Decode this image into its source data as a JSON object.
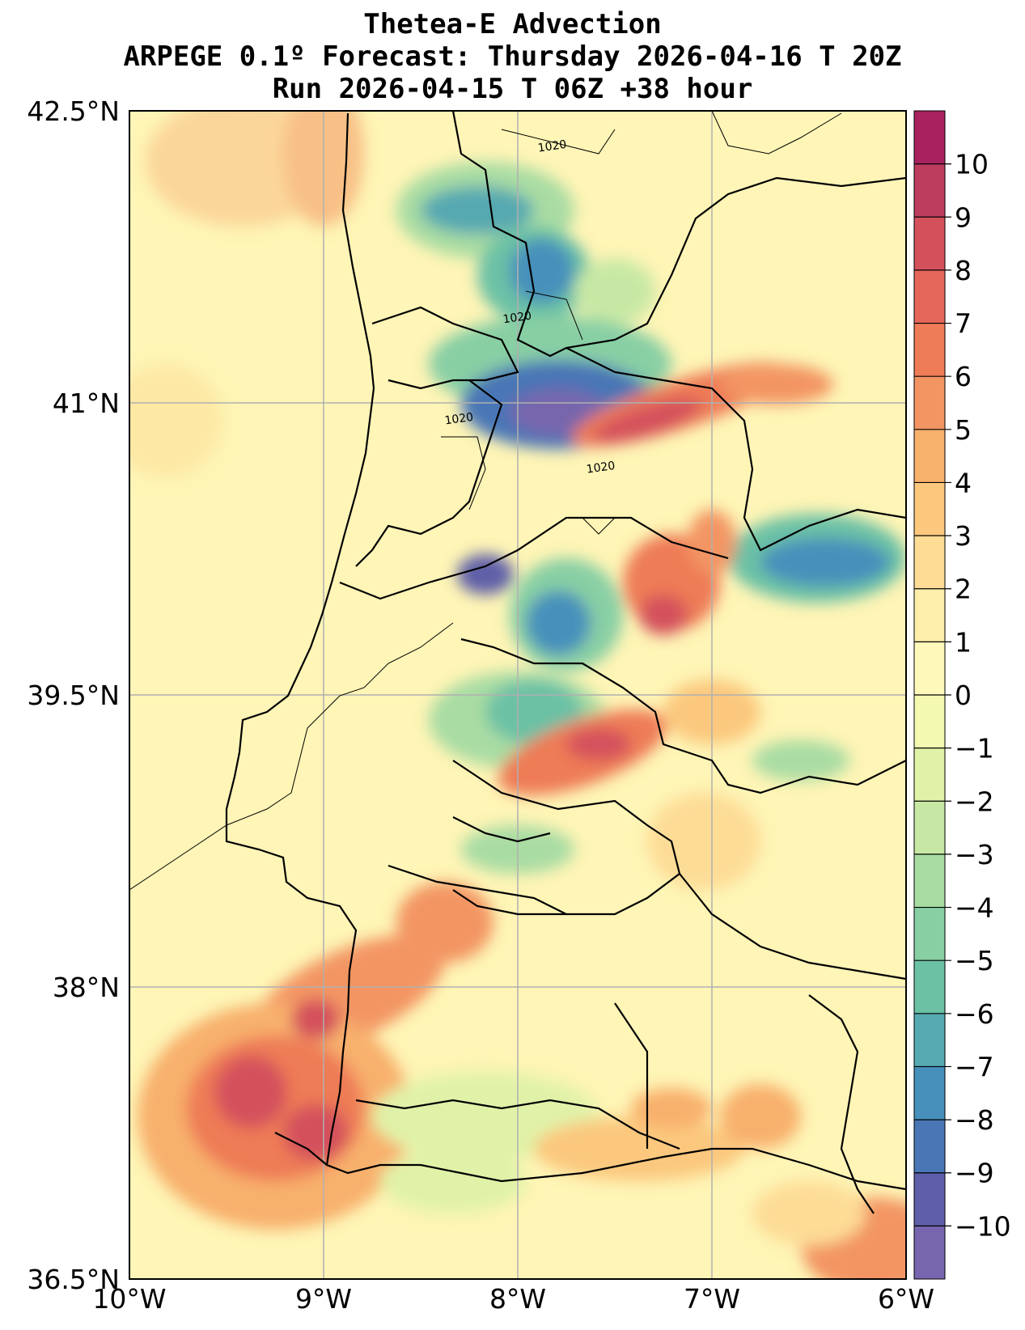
{
  "title": {
    "line1": "Thetea-E Advection",
    "line2": "ARPEGE 0.1º Forecast: Thursday 2026-04-16 T 20Z",
    "line3": "Run 2026-04-15 T 06Z +38 hour"
  },
  "map": {
    "lon_range": [
      -10,
      -6
    ],
    "lat_range": [
      36.5,
      42.5
    ],
    "lat_ticks": [
      {
        "value": 42.5,
        "label": "42.5°N"
      },
      {
        "value": 41,
        "label": "41°N"
      },
      {
        "value": 39.5,
        "label": "39.5°N"
      },
      {
        "value": 38,
        "label": "38°N"
      },
      {
        "value": 36.5,
        "label": "36.5°N"
      }
    ],
    "lon_ticks": [
      {
        "value": -10,
        "label": "10°W"
      },
      {
        "value": -9,
        "label": "9°W"
      },
      {
        "value": -8,
        "label": "8°W"
      },
      {
        "value": -7,
        "label": "7°W"
      },
      {
        "value": -6,
        "label": "6°W"
      }
    ],
    "isobar_labels": [
      {
        "text": "1020",
        "lon": -7.82,
        "lat": 42.3
      },
      {
        "text": "1020",
        "lon": -8.0,
        "lat": 41.42
      },
      {
        "text": "1020",
        "lon": -8.3,
        "lat": 40.9
      },
      {
        "text": "1020",
        "lon": -7.57,
        "lat": 40.65
      }
    ]
  },
  "colorbar": {
    "levels": [
      10,
      9,
      8,
      7,
      6,
      5,
      4,
      3,
      2,
      1,
      0,
      -1,
      -2,
      -3,
      -4,
      -5,
      -6,
      -7,
      -8,
      -9,
      -10
    ],
    "labels": [
      "10",
      "9",
      "8",
      "7",
      "6",
      "5",
      "4",
      "3",
      "2",
      "1",
      "0",
      "−1",
      "−2",
      "−3",
      "−4",
      "−5",
      "−6",
      "−7",
      "−8",
      "−9",
      "−10"
    ],
    "colors": [
      "#a8225e",
      "#bd3d5f",
      "#d4515c",
      "#e4675a",
      "#ee7c57",
      "#f39563",
      "#f8b06d",
      "#fbc87e",
      "#fddc96",
      "#feeeab",
      "#fef9bb",
      "#f4f9b2",
      "#e0f2a8",
      "#c7e8a4",
      "#a9dca3",
      "#88cfa4",
      "#6cc1a5",
      "#56a9b1",
      "#4690bb",
      "#4a76b6",
      "#5e5fa8",
      "#7766ad"
    ]
  }
}
